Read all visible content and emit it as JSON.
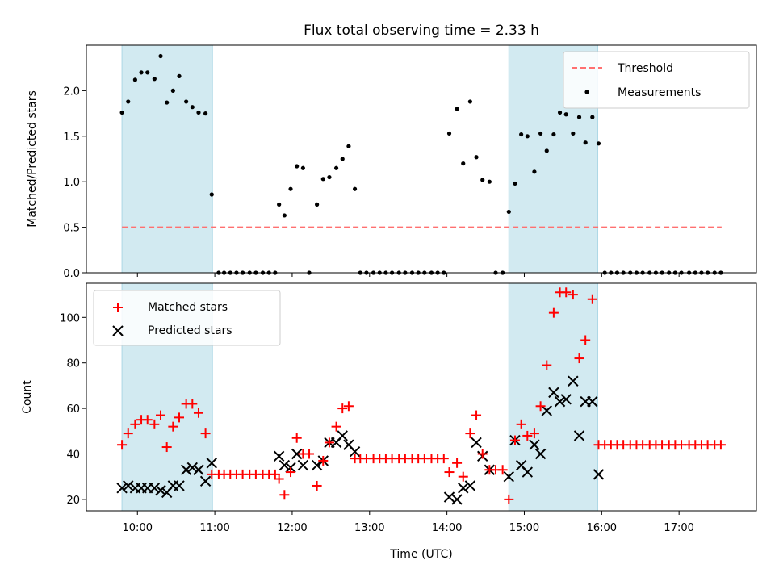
{
  "figure": {
    "title": "Flux total observing time = 2.33 h",
    "xlabel": "Time (UTC)",
    "x_ticks": [
      "10:00",
      "11:00",
      "12:00",
      "13:00",
      "14:00",
      "15:00",
      "16:00",
      "17:00"
    ],
    "colors": {
      "threshold": "#ff7070",
      "measurements": "#000000",
      "matched": "#ff0000",
      "predicted": "#000000",
      "span": "#add8e6"
    }
  },
  "chart_data": [
    {
      "type": "scatter",
      "title": "Flux total observing time = 2.33 h",
      "ylabel": "Matched/Predicted stars",
      "xlabel": "",
      "x_unit": "hours UTC",
      "xlim": [
        9.34,
        18.0
      ],
      "ylim": [
        0,
        2.5
      ],
      "yticks": [
        "0.0",
        "0.5",
        "1.0",
        "1.5",
        "2.0"
      ],
      "legend": {
        "position": "top-right",
        "entries": [
          "Threshold",
          "Measurements"
        ]
      },
      "shaded_intervals": [
        [
          9.8,
          10.97
        ],
        [
          14.8,
          15.95
        ]
      ],
      "threshold": {
        "name": "Threshold",
        "y": 0.5,
        "x_range": [
          9.8,
          17.55
        ]
      },
      "series": [
        {
          "name": "Measurements",
          "points": [
            [
              9.8,
              1.76
            ],
            [
              9.88,
              1.88
            ],
            [
              9.97,
              2.12
            ],
            [
              10.05,
              2.2
            ],
            [
              10.13,
              2.2
            ],
            [
              10.22,
              2.13
            ],
            [
              10.3,
              2.38
            ],
            [
              10.38,
              1.87
            ],
            [
              10.46,
              2.0
            ],
            [
              10.54,
              2.16
            ],
            [
              10.63,
              1.88
            ],
            [
              10.71,
              1.82
            ],
            [
              10.79,
              1.76
            ],
            [
              10.88,
              1.75
            ],
            [
              10.96,
              0.86
            ],
            [
              11.05,
              0
            ],
            [
              11.12,
              0
            ],
            [
              11.2,
              0
            ],
            [
              11.28,
              0
            ],
            [
              11.36,
              0
            ],
            [
              11.45,
              0
            ],
            [
              11.53,
              0
            ],
            [
              11.62,
              0
            ],
            [
              11.7,
              0
            ],
            [
              11.78,
              0
            ],
            [
              11.83,
              0.75
            ],
            [
              11.9,
              0.63
            ],
            [
              11.98,
              0.92
            ],
            [
              12.06,
              1.17
            ],
            [
              12.14,
              1.15
            ],
            [
              12.22,
              0
            ],
            [
              12.32,
              0.75
            ],
            [
              12.4,
              1.03
            ],
            [
              12.48,
              1.05
            ],
            [
              12.57,
              1.15
            ],
            [
              12.65,
              1.25
            ],
            [
              12.73,
              1.39
            ],
            [
              12.81,
              0.92
            ],
            [
              12.88,
              0
            ],
            [
              12.96,
              0
            ],
            [
              13.05,
              0
            ],
            [
              13.13,
              0
            ],
            [
              13.21,
              0
            ],
            [
              13.29,
              0
            ],
            [
              13.38,
              0
            ],
            [
              13.46,
              0
            ],
            [
              13.55,
              0
            ],
            [
              13.63,
              0
            ],
            [
              13.71,
              0
            ],
            [
              13.8,
              0
            ],
            [
              13.88,
              0
            ],
            [
              13.96,
              0
            ],
            [
              14.03,
              1.53
            ],
            [
              14.13,
              1.8
            ],
            [
              14.21,
              1.2
            ],
            [
              14.3,
              1.88
            ],
            [
              14.38,
              1.27
            ],
            [
              14.46,
              1.02
            ],
            [
              14.55,
              1.0
            ],
            [
              14.63,
              0
            ],
            [
              14.72,
              0
            ],
            [
              14.8,
              0.67
            ],
            [
              14.88,
              0.98
            ],
            [
              14.96,
              1.52
            ],
            [
              15.04,
              1.5
            ],
            [
              15.13,
              1.11
            ],
            [
              15.21,
              1.53
            ],
            [
              15.29,
              1.34
            ],
            [
              15.38,
              1.52
            ],
            [
              15.46,
              1.76
            ],
            [
              15.54,
              1.74
            ],
            [
              15.63,
              1.53
            ],
            [
              15.71,
              1.71
            ],
            [
              15.79,
              1.43
            ],
            [
              15.88,
              1.71
            ],
            [
              15.96,
              1.42
            ],
            [
              16.04,
              0
            ],
            [
              16.12,
              0
            ],
            [
              16.2,
              0
            ],
            [
              16.28,
              0
            ],
            [
              16.37,
              0
            ],
            [
              16.45,
              0
            ],
            [
              16.53,
              0
            ],
            [
              16.62,
              0
            ],
            [
              16.7,
              0
            ],
            [
              16.78,
              0
            ],
            [
              16.87,
              0
            ],
            [
              16.95,
              0
            ],
            [
              17.03,
              0
            ],
            [
              17.13,
              0
            ],
            [
              17.21,
              0
            ],
            [
              17.29,
              0
            ],
            [
              17.37,
              0
            ],
            [
              17.46,
              0
            ],
            [
              17.54,
              0
            ]
          ]
        }
      ]
    },
    {
      "type": "scatter",
      "title": "",
      "ylabel": "Count",
      "xlabel": "Time (UTC)",
      "x_unit": "hours UTC",
      "xlim": [
        9.34,
        18.0
      ],
      "ylim": [
        15,
        115
      ],
      "yticks": [
        "20",
        "40",
        "60",
        "80",
        "100"
      ],
      "legend": {
        "position": "top-left",
        "entries": [
          "Matched stars",
          "Predicted stars"
        ]
      },
      "shaded_intervals": [
        [
          9.8,
          10.97
        ],
        [
          14.8,
          15.95
        ]
      ],
      "series": [
        {
          "name": "Matched stars",
          "marker": "+",
          "points": [
            [
              9.8,
              44
            ],
            [
              9.88,
              49
            ],
            [
              9.97,
              53
            ],
            [
              10.05,
              55
            ],
            [
              10.13,
              55
            ],
            [
              10.22,
              53
            ],
            [
              10.3,
              57
            ],
            [
              10.38,
              43
            ],
            [
              10.46,
              52
            ],
            [
              10.54,
              56
            ],
            [
              10.63,
              62
            ],
            [
              10.71,
              62
            ],
            [
              10.79,
              58
            ],
            [
              10.88,
              49
            ],
            [
              10.96,
              31
            ],
            [
              11.05,
              31
            ],
            [
              11.12,
              31
            ],
            [
              11.2,
              31
            ],
            [
              11.28,
              31
            ],
            [
              11.36,
              31
            ],
            [
              11.45,
              31
            ],
            [
              11.53,
              31
            ],
            [
              11.62,
              31
            ],
            [
              11.7,
              31
            ],
            [
              11.78,
              31
            ],
            [
              11.83,
              29
            ],
            [
              11.9,
              22
            ],
            [
              11.98,
              32
            ],
            [
              12.06,
              47
            ],
            [
              12.14,
              40
            ],
            [
              12.22,
              40
            ],
            [
              12.32,
              26
            ],
            [
              12.4,
              37
            ],
            [
              12.48,
              45
            ],
            [
              12.57,
              52
            ],
            [
              12.65,
              60
            ],
            [
              12.73,
              61
            ],
            [
              12.81,
              38
            ],
            [
              12.88,
              38
            ],
            [
              12.96,
              38
            ],
            [
              13.05,
              38
            ],
            [
              13.13,
              38
            ],
            [
              13.21,
              38
            ],
            [
              13.29,
              38
            ],
            [
              13.38,
              38
            ],
            [
              13.46,
              38
            ],
            [
              13.55,
              38
            ],
            [
              13.63,
              38
            ],
            [
              13.71,
              38
            ],
            [
              13.8,
              38
            ],
            [
              13.88,
              38
            ],
            [
              13.96,
              38
            ],
            [
              14.03,
              32
            ],
            [
              14.13,
              36
            ],
            [
              14.21,
              30
            ],
            [
              14.3,
              49
            ],
            [
              14.38,
              57
            ],
            [
              14.46,
              40
            ],
            [
              14.55,
              33
            ],
            [
              14.63,
              33
            ],
            [
              14.72,
              33
            ],
            [
              14.8,
              20
            ],
            [
              14.88,
              46
            ],
            [
              14.96,
              53
            ],
            [
              15.04,
              48
            ],
            [
              15.13,
              49
            ],
            [
              15.21,
              61
            ],
            [
              15.29,
              79
            ],
            [
              15.38,
              102
            ],
            [
              15.46,
              111
            ],
            [
              15.54,
              111
            ],
            [
              15.63,
              110
            ],
            [
              15.71,
              82
            ],
            [
              15.79,
              90
            ],
            [
              15.88,
              108
            ],
            [
              15.96,
              44
            ],
            [
              16.04,
              44
            ],
            [
              16.12,
              44
            ],
            [
              16.2,
              44
            ],
            [
              16.28,
              44
            ],
            [
              16.37,
              44
            ],
            [
              16.45,
              44
            ],
            [
              16.53,
              44
            ],
            [
              16.62,
              44
            ],
            [
              16.7,
              44
            ],
            [
              16.78,
              44
            ],
            [
              16.87,
              44
            ],
            [
              16.95,
              44
            ],
            [
              17.03,
              44
            ],
            [
              17.13,
              44
            ],
            [
              17.21,
              44
            ],
            [
              17.29,
              44
            ],
            [
              17.37,
              44
            ],
            [
              17.46,
              44
            ],
            [
              17.54,
              44
            ]
          ]
        },
        {
          "name": "Predicted stars",
          "marker": "x",
          "points": [
            [
              9.8,
              25
            ],
            [
              9.88,
              26
            ],
            [
              9.97,
              25
            ],
            [
              10.05,
              25
            ],
            [
              10.13,
              25
            ],
            [
              10.22,
              25
            ],
            [
              10.3,
              24
            ],
            [
              10.38,
              23
            ],
            [
              10.46,
              26
            ],
            [
              10.54,
              26
            ],
            [
              10.63,
              33
            ],
            [
              10.71,
              34
            ],
            [
              10.79,
              33
            ],
            [
              10.88,
              28
            ],
            [
              10.96,
              36
            ],
            [
              11.83,
              39
            ],
            [
              11.9,
              35
            ],
            [
              11.98,
              34
            ],
            [
              12.06,
              40
            ],
            [
              12.14,
              35
            ],
            [
              12.32,
              35
            ],
            [
              12.4,
              37
            ],
            [
              12.48,
              45
            ],
            [
              12.57,
              45
            ],
            [
              12.65,
              48
            ],
            [
              12.73,
              44
            ],
            [
              12.81,
              41
            ],
            [
              14.03,
              21
            ],
            [
              14.13,
              20
            ],
            [
              14.21,
              25
            ],
            [
              14.3,
              26
            ],
            [
              14.38,
              45
            ],
            [
              14.46,
              39
            ],
            [
              14.55,
              33
            ],
            [
              14.8,
              30
            ],
            [
              14.88,
              46
            ],
            [
              14.96,
              35
            ],
            [
              15.04,
              32
            ],
            [
              15.13,
              44
            ],
            [
              15.21,
              40
            ],
            [
              15.29,
              59
            ],
            [
              15.38,
              67
            ],
            [
              15.46,
              63
            ],
            [
              15.54,
              64
            ],
            [
              15.63,
              72
            ],
            [
              15.71,
              48
            ],
            [
              15.79,
              63
            ],
            [
              15.88,
              63
            ],
            [
              15.96,
              31
            ]
          ]
        }
      ]
    }
  ]
}
